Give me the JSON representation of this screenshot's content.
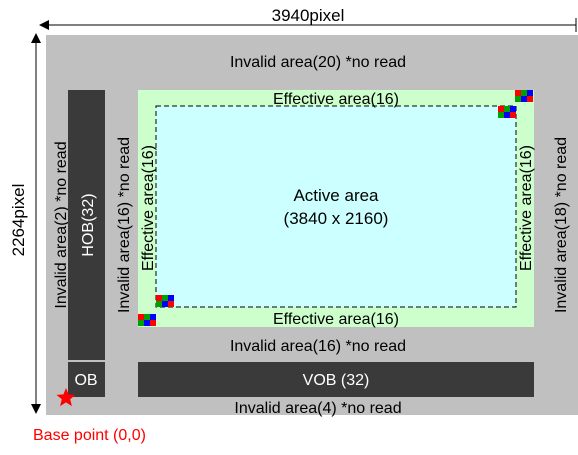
{
  "dimensions": {
    "width_label": "3940pixel",
    "height_label": "2264pixel"
  },
  "areas": {
    "invalid_top": "Invalid area(20) *no read",
    "invalid_left_outer": "Invalid area(2) *no read",
    "hob": "HOB(32)",
    "invalid_left_inner": "Invalid area(16) *no read",
    "invalid_right": "Invalid area(18) *no read",
    "invalid_bottom_16": "Invalid area(16) *no read",
    "invalid_bottom_4": "Invalid area(4) *no read",
    "ob": "OB",
    "vob": "VOB (32)",
    "effective_top": "Effective area(16)",
    "effective_bottom": "Effective area(16)",
    "effective_left": "Effective area(16)",
    "effective_right": "Effective area(16)",
    "active_line1": "Active area",
    "active_line2": "(3840 x 2160)"
  },
  "base_point": "Base point (0,0)",
  "colors": {
    "sensor_gray": "#c0c0c0",
    "dark_block": "#3a3a3a",
    "effective_green": "#ccffcc",
    "active_cyan": "#ccffff",
    "base_point_red": "#ff0000",
    "pixel_red": "#ff0000",
    "pixel_green": "#00a000",
    "pixel_blue": "#0000ff"
  }
}
